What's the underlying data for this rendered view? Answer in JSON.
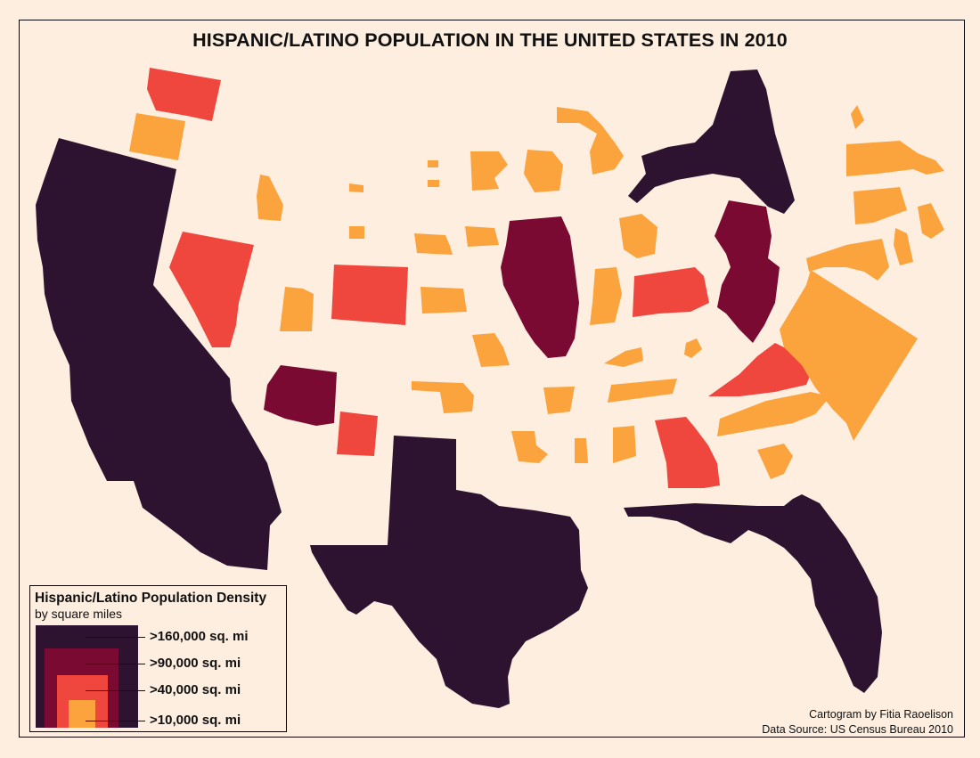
{
  "title": "HISPANIC/LATINO POPULATION IN THE UNITED STATES IN 2010",
  "legend": {
    "title": "Hispanic/Latino Population Density",
    "subtitle": "by square miles",
    "classes": [
      {
        "label": ">160,000 sq. mi",
        "color": "#2e1330"
      },
      {
        "label": ">90,000 sq. mi",
        "color": "#7a0a32"
      },
      {
        "label": ">40,000 sq. mi",
        "color": "#ef473e"
      },
      {
        "label": ">10,000 sq. mi",
        "color": "#fba33d"
      }
    ]
  },
  "credits": {
    "author": "Cartogram by Fitia Raoelison",
    "source": "Data Source: US Census Bureau 2010"
  },
  "colors": {
    "background": "#fdeee0",
    "class_1": "#2e1330",
    "class_2": "#7a0a32",
    "class_3": "#ef473e",
    "class_4": "#fba33d"
  }
}
